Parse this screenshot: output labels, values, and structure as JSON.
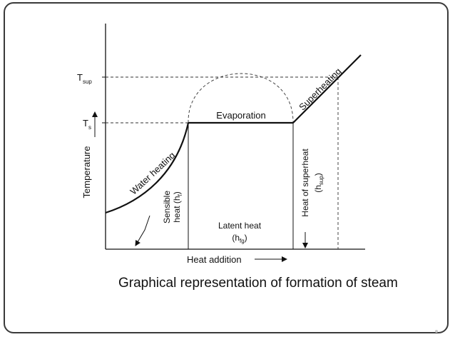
{
  "diagram": {
    "y_axis_label": "Temperature",
    "x_axis_label": "Heat addition",
    "t_sup": {
      "main": "T",
      "sub": "sup"
    },
    "t_s": {
      "main": "T",
      "sub": "s"
    },
    "water_heating": "Water heating",
    "evaporation": "Evaporation",
    "superheating": "Superheating",
    "sensible_heat": {
      "line1": "Sensible",
      "line2_main": "heat (h",
      "line2_sub": "f",
      "line2_end": ")"
    },
    "latent_heat": {
      "line1": "Latent heat",
      "line2_main": "(h",
      "line2_sub": "fg",
      "line2_end": ")"
    },
    "heat_of_superheat": {
      "line1": "Heat of superheat",
      "line2_main": "(h",
      "line2_sub": "sup",
      "line2_end": ")"
    }
  },
  "caption": "Graphical representation of formation of steam"
}
